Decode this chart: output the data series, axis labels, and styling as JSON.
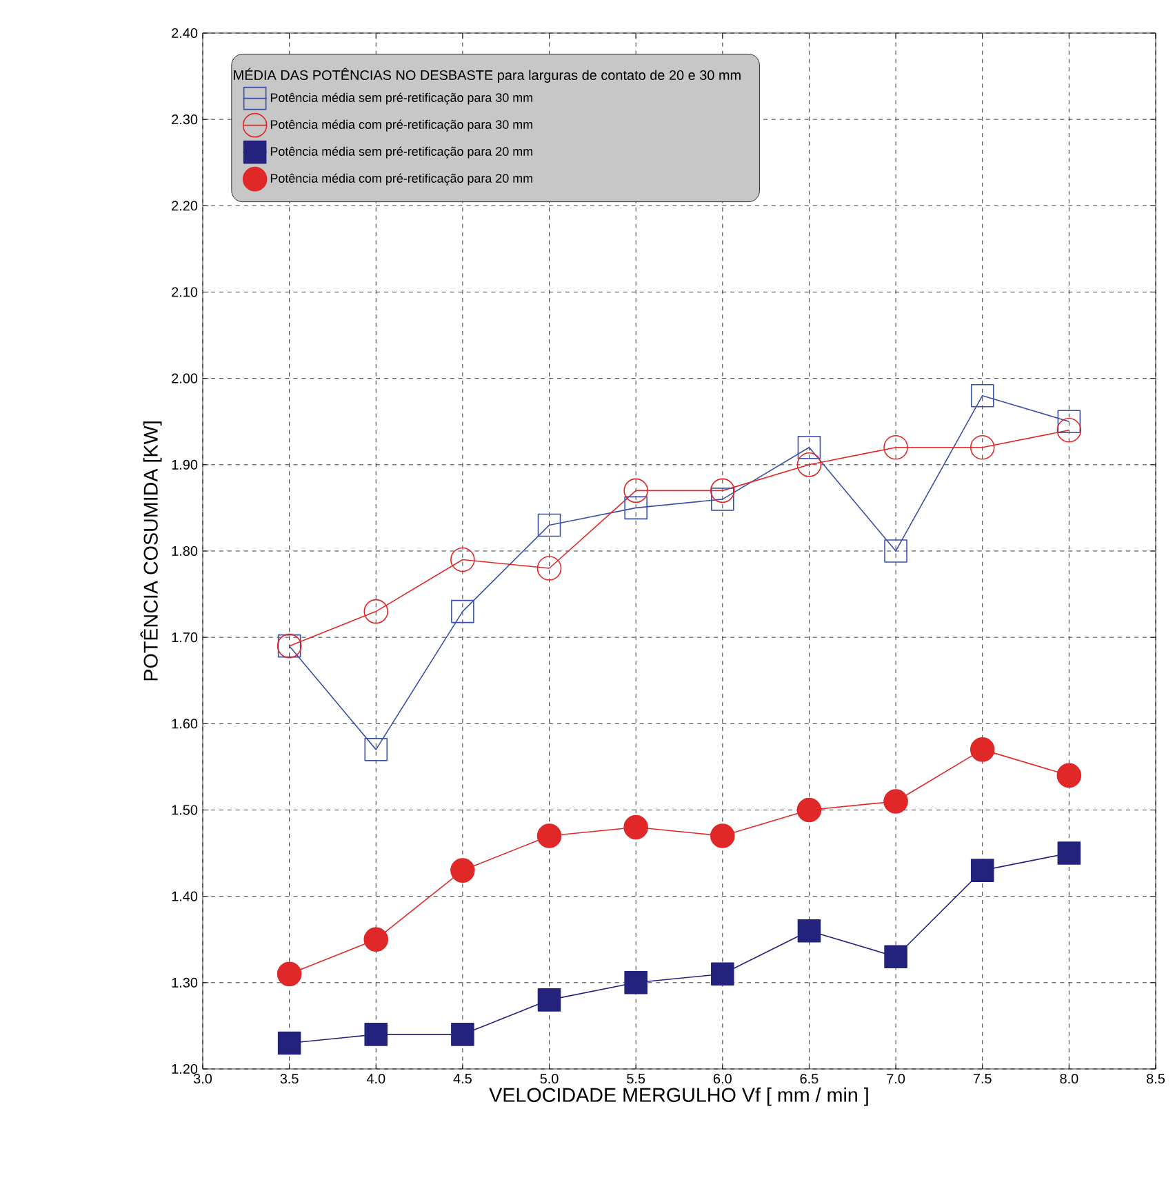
{
  "chart_data": {
    "type": "line",
    "xlabel": "VELOCIDADE MERGULHO Vf [  mm / min ]",
    "ylabel": "POTÊNCIA COSUMIDA [KW]",
    "legend_title": "MÉDIA DAS POTÊNCIAS NO DESBASTE para larguras de contato de 20 e 30 mm",
    "x": [
      3.5,
      4.0,
      4.5,
      5.0,
      5.5,
      6.0,
      6.5,
      7.0,
      7.5,
      8.0
    ],
    "series": [
      {
        "name": "Potência média sem pré-retificação para 30 mm",
        "color": "#3a4fa8",
        "marker": "square",
        "values": [
          1.69,
          1.57,
          1.73,
          1.83,
          1.85,
          1.86,
          1.92,
          1.8,
          1.98,
          1.95
        ]
      },
      {
        "name": "Potência média com pré-retificação para 30 mm",
        "color": "#e02828",
        "marker": "circle",
        "values": [
          1.69,
          1.73,
          1.79,
          1.78,
          1.87,
          1.87,
          1.9,
          1.92,
          1.92,
          1.94
        ]
      },
      {
        "name": "Potência média sem pré-retificação para 20 mm",
        "color": "#23237e",
        "marker": "square",
        "values": [
          1.23,
          1.24,
          1.24,
          1.28,
          1.3,
          1.31,
          1.36,
          1.33,
          1.43,
          1.45
        ]
      },
      {
        "name": "Potência média com pré-retificação para 20 mm",
        "color": "#e02828",
        "marker": "circle",
        "values": [
          1.31,
          1.35,
          1.43,
          1.47,
          1.48,
          1.47,
          1.5,
          1.51,
          1.57,
          1.54
        ]
      }
    ],
    "xlim": [
      3.0,
      8.5
    ],
    "xticks": [
      {
        "value": 3.0,
        "label": "3.0"
      },
      {
        "value": 3.5,
        "label": "3.5"
      },
      {
        "value": 4.0,
        "label": "4.0"
      },
      {
        "value": 4.5,
        "label": "4.5"
      },
      {
        "value": 5.0,
        "label": "5.0"
      },
      {
        "value": 5.5,
        "label": "5.5"
      },
      {
        "value": 6.0,
        "label": "6.0"
      },
      {
        "value": 6.5,
        "label": "6.5"
      },
      {
        "value": 7.0,
        "label": "7.0"
      },
      {
        "value": 7.5,
        "label": "7.5"
      },
      {
        "value": 8.0,
        "label": "8.0"
      },
      {
        "value": 8.5,
        "label": "8.5"
      }
    ],
    "ylim": [
      1.2,
      2.4
    ],
    "yticks": [
      {
        "value": 1.2,
        "label": "1.20"
      },
      {
        "value": 1.3,
        "label": "1.30"
      },
      {
        "value": 1.4,
        "label": "1.40"
      },
      {
        "value": 1.5,
        "label": "1.50"
      },
      {
        "value": 1.6,
        "label": "1.60"
      },
      {
        "value": 1.7,
        "label": "1.70"
      },
      {
        "value": 1.8,
        "label": "1.80"
      },
      {
        "value": 1.9,
        "label": "1.90"
      },
      {
        "value": 2.0,
        "label": "2.00"
      },
      {
        "value": 2.1,
        "label": "2.10"
      },
      {
        "value": 2.2,
        "label": "2.20"
      },
      {
        "value": 2.3,
        "label": "2.30"
      },
      {
        "value": 2.4,
        "label": "2.40"
      }
    ],
    "grid": true,
    "legend": "top left",
    "line_style": "solid"
  }
}
